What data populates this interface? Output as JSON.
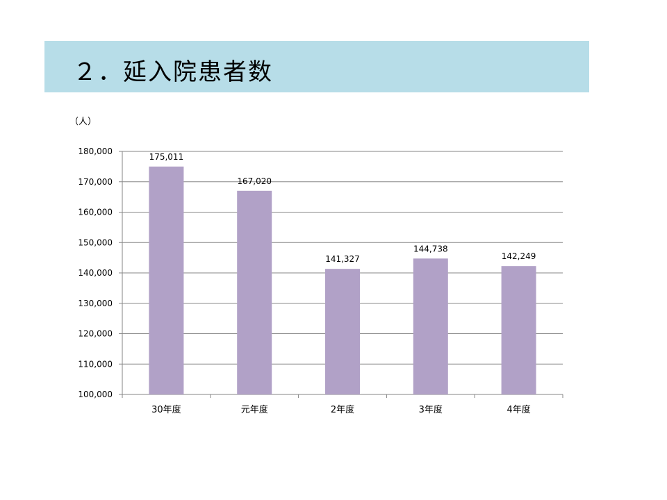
{
  "slide": {
    "title": "２．延入院患者数"
  },
  "chart_data": {
    "type": "bar",
    "unit_label": "（人）",
    "categories": [
      "30年度",
      "元年度",
      "2年度",
      "3年度",
      "4年度"
    ],
    "values": [
      175011,
      167020,
      141327,
      144738,
      142249
    ],
    "value_labels": [
      "175,011",
      "167,020",
      "141,327",
      "144,738",
      "142,249"
    ],
    "ylim": [
      100000,
      180000
    ],
    "yticks": [
      "100,000",
      "110,000",
      "120,000",
      "130,000",
      "140,000",
      "150,000",
      "160,000",
      "170,000",
      "180,000"
    ],
    "ytick_values": [
      100000,
      110000,
      120000,
      130000,
      140000,
      150000,
      160000,
      170000,
      180000
    ],
    "grid": true,
    "legend": "none",
    "colors": {
      "bar": "#b1a1c7",
      "grid": "#868686",
      "banner": "#b7dde8"
    }
  }
}
